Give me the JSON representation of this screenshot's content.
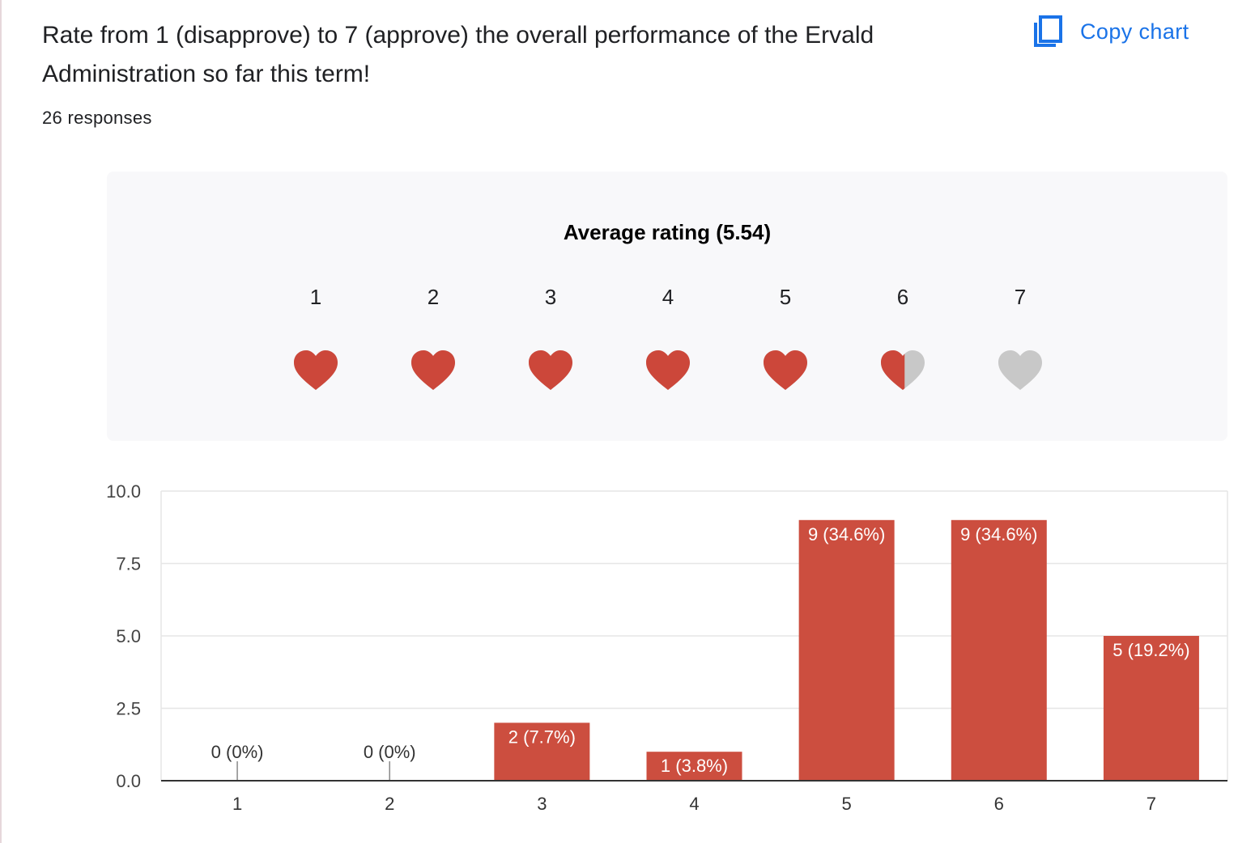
{
  "question": {
    "title": "Rate from 1 (disapprove) to 7 (approve) the overall performance of the Ervald Administration so far this term!",
    "responses": "26 responses"
  },
  "toolbar": {
    "copy_label": "Copy chart",
    "copy_icon": "copy-icon"
  },
  "rating_summary": {
    "title": "Average rating (5.54)",
    "average": 5.54,
    "scale": [
      "1",
      "2",
      "3",
      "4",
      "5",
      "6",
      "7"
    ],
    "icon": "heart-icon",
    "filled_color": "#cc473a",
    "empty_color": "#c8c8c8"
  },
  "chart_data": {
    "type": "bar",
    "categories": [
      "1",
      "2",
      "3",
      "4",
      "5",
      "6",
      "7"
    ],
    "values": [
      0,
      0,
      2,
      1,
      9,
      9,
      5
    ],
    "data_labels": [
      "0 (0%)",
      "0 (0%)",
      "2 (7.7%)",
      "1 (3.8%)",
      "9 (34.6%)",
      "9 (34.6%)",
      "5 (19.2%)"
    ],
    "y_ticks": [
      "0.0",
      "2.5",
      "5.0",
      "7.5",
      "10.0"
    ],
    "ylim": [
      0,
      10
    ],
    "bar_color": "#cc4e3f",
    "title": "",
    "xlabel": "",
    "ylabel": ""
  }
}
